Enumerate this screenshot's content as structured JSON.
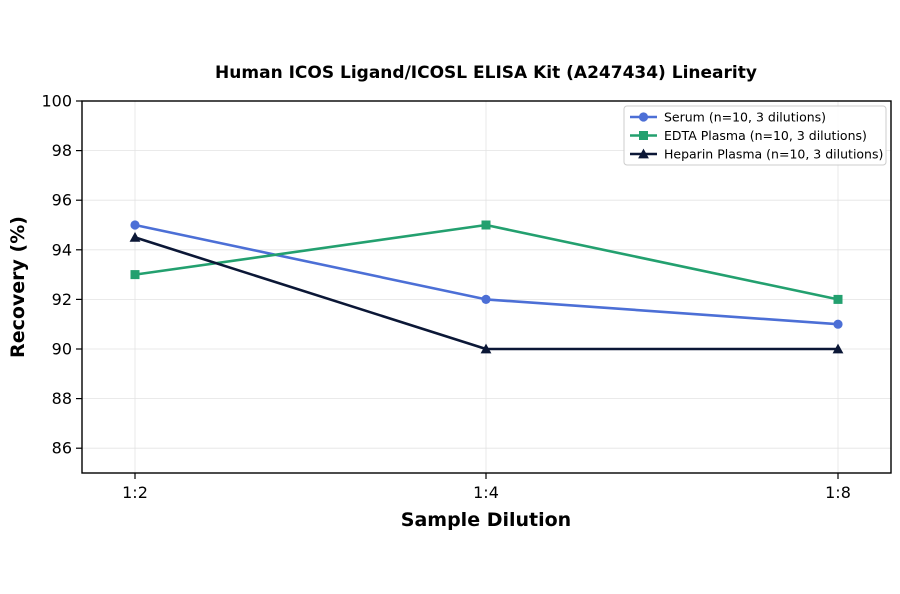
{
  "chart_data": {
    "type": "line",
    "title": "Human ICOS Ligand/ICOSL ELISA Kit (A247434) Linearity",
    "xlabel": "Sample Dilution",
    "ylabel": "Recovery (%)",
    "categories": [
      "1:2",
      "1:4",
      "1:8"
    ],
    "ylim": [
      85,
      100
    ],
    "yticks": [
      86,
      88,
      90,
      92,
      94,
      96,
      98,
      100
    ],
    "grid": true,
    "legend_position": "top-right",
    "series": [
      {
        "name": "Serum (n=10, 3 dilutions)",
        "values": [
          95,
          92,
          91
        ],
        "color": "#4c6fd6",
        "marker": "circle"
      },
      {
        "name": "EDTA Plasma (n=10, 3 dilutions)",
        "values": [
          93,
          95,
          92
        ],
        "color": "#23a06f",
        "marker": "square"
      },
      {
        "name": "Heparin Plasma (n=10, 3 dilutions)",
        "values": [
          94.5,
          90,
          90
        ],
        "color": "#0b1736",
        "marker": "triangle"
      }
    ]
  }
}
